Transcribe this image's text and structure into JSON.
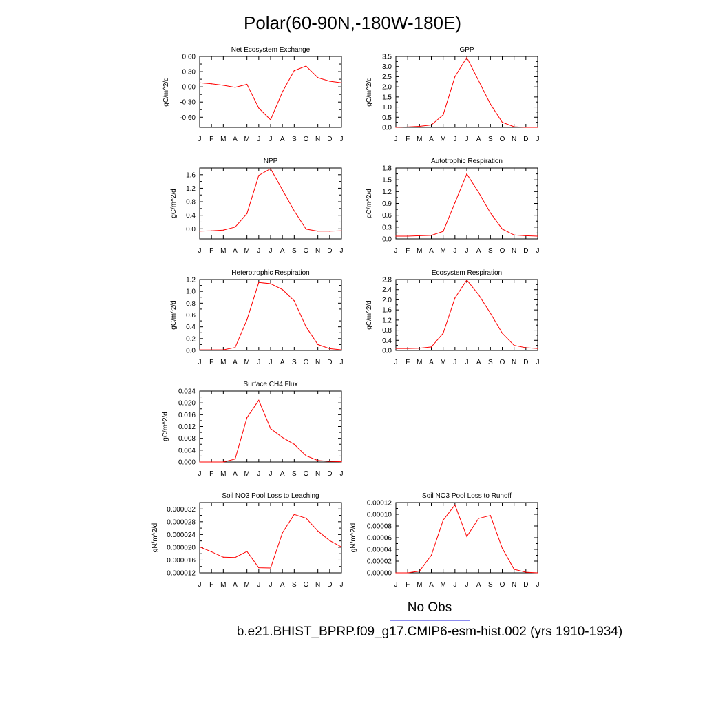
{
  "page": {
    "title": "Polar(60-90N,-180W-180E)"
  },
  "legend": {
    "obs_label": "No Obs",
    "obs_color": "#8c8cf0",
    "case_label": "b.e21.BHIST_BPRP.f09_g17.CMIP6-esm-hist.002 (yrs 1910-1934)",
    "case_color": "#f08c8c"
  },
  "chart_data": [
    {
      "type": "line",
      "title": "Net Ecosystem Exchange",
      "ylabel": "gC/m^2/d",
      "categories": [
        "J",
        "F",
        "M",
        "A",
        "M",
        "J",
        "J",
        "A",
        "S",
        "O",
        "N",
        "D",
        "J"
      ],
      "ylim": [
        -0.8,
        0.6
      ],
      "yticks": [
        -0.6,
        -0.3,
        0.0,
        0.3,
        0.6
      ],
      "ytick_labels": [
        "-0.60",
        "-0.30",
        "0.00",
        "0.30",
        "0.60"
      ],
      "series": [
        {
          "values": [
            0.08,
            0.06,
            0.03,
            -0.01,
            0.05,
            -0.42,
            -0.65,
            -0.1,
            0.32,
            0.41,
            0.18,
            0.11,
            0.08
          ],
          "color": "#ff0000"
        }
      ]
    },
    {
      "type": "line",
      "title": "GPP",
      "ylabel": "gC/m^2/d",
      "categories": [
        "J",
        "F",
        "M",
        "A",
        "M",
        "J",
        "J",
        "A",
        "S",
        "O",
        "N",
        "D",
        "J"
      ],
      "ylim": [
        0.0,
        3.5
      ],
      "yticks": [
        0.0,
        0.5,
        1.0,
        1.5,
        2.0,
        2.5,
        3.0,
        3.5
      ],
      "ytick_labels": [
        "0.0",
        "0.5",
        "1.0",
        "1.5",
        "2.0",
        "2.5",
        "3.0",
        "3.5"
      ],
      "series": [
        {
          "values": [
            0.0,
            0.02,
            0.05,
            0.12,
            0.62,
            2.5,
            3.45,
            2.3,
            1.15,
            0.25,
            0.03,
            0.0,
            0.0
          ],
          "color": "#ff0000"
        }
      ]
    },
    {
      "type": "line",
      "title": "NPP",
      "ylabel": "gC/m^2/d",
      "categories": [
        "J",
        "F",
        "M",
        "A",
        "M",
        "J",
        "J",
        "A",
        "S",
        "O",
        "N",
        "D",
        "J"
      ],
      "ylim": [
        -0.3,
        1.8
      ],
      "yticks": [
        0.0,
        0.4,
        0.8,
        1.2,
        1.6
      ],
      "ytick_labels": [
        "0.0",
        "0.4",
        "0.8",
        "1.2",
        "1.6"
      ],
      "series": [
        {
          "values": [
            -0.07,
            -0.06,
            -0.04,
            0.05,
            0.45,
            1.58,
            1.78,
            1.15,
            0.53,
            -0.01,
            -0.07,
            -0.07,
            -0.06
          ],
          "color": "#ff0000"
        }
      ]
    },
    {
      "type": "line",
      "title": "Autotrophic Respiration",
      "ylabel": "gC/m^2/d",
      "categories": [
        "J",
        "F",
        "M",
        "A",
        "M",
        "J",
        "J",
        "A",
        "S",
        "O",
        "N",
        "D",
        "J"
      ],
      "ylim": [
        0.0,
        1.8
      ],
      "yticks": [
        0.0,
        0.3,
        0.6,
        0.9,
        1.2,
        1.5,
        1.8
      ],
      "ytick_labels": [
        "0.0",
        "0.3",
        "0.6",
        "0.9",
        "1.2",
        "1.5",
        "1.8"
      ],
      "series": [
        {
          "values": [
            0.07,
            0.07,
            0.08,
            0.09,
            0.19,
            0.92,
            1.65,
            1.18,
            0.66,
            0.25,
            0.1,
            0.08,
            0.07
          ],
          "color": "#ff0000"
        }
      ]
    },
    {
      "type": "line",
      "title": "Heterotrophic Respiration",
      "ylabel": "gC/m^2/d",
      "categories": [
        "J",
        "F",
        "M",
        "A",
        "M",
        "J",
        "J",
        "A",
        "S",
        "O",
        "N",
        "D",
        "J"
      ],
      "ylim": [
        0.0,
        1.2
      ],
      "yticks": [
        0.0,
        0.2,
        0.4,
        0.6,
        0.8,
        1.0,
        1.2
      ],
      "ytick_labels": [
        "0.0",
        "0.2",
        "0.4",
        "0.6",
        "0.8",
        "1.0",
        "1.2"
      ],
      "series": [
        {
          "values": [
            0.01,
            0.01,
            0.01,
            0.05,
            0.52,
            1.15,
            1.13,
            1.03,
            0.84,
            0.4,
            0.1,
            0.03,
            0.01
          ],
          "color": "#ff0000"
        }
      ]
    },
    {
      "type": "line",
      "title": "Ecosystem Respiration",
      "ylabel": "gC/m^2/d",
      "categories": [
        "J",
        "F",
        "M",
        "A",
        "M",
        "J",
        "J",
        "A",
        "S",
        "O",
        "N",
        "D",
        "J"
      ],
      "ylim": [
        0.0,
        2.8
      ],
      "yticks": [
        0.0,
        0.4,
        0.8,
        1.2,
        1.6,
        2.0,
        2.4,
        2.8
      ],
      "ytick_labels": [
        "0.0",
        "0.4",
        "0.8",
        "1.2",
        "1.6",
        "2.0",
        "2.4",
        "2.8"
      ],
      "series": [
        {
          "values": [
            0.08,
            0.08,
            0.09,
            0.14,
            0.68,
            2.07,
            2.78,
            2.2,
            1.47,
            0.68,
            0.2,
            0.11,
            0.08
          ],
          "color": "#ff0000"
        }
      ]
    },
    {
      "type": "line",
      "title": "Surface CH4 Flux",
      "ylabel": "gC/m^2/d",
      "categories": [
        "J",
        "F",
        "M",
        "A",
        "M",
        "J",
        "J",
        "A",
        "S",
        "O",
        "N",
        "D",
        "J"
      ],
      "ylim": [
        0.0,
        0.024
      ],
      "yticks": [
        0.0,
        0.004,
        0.008,
        0.012,
        0.016,
        0.02,
        0.024
      ],
      "ytick_labels": [
        "0.000",
        "0.004",
        "0.008",
        "0.012",
        "0.016",
        "0.020",
        "0.024"
      ],
      "series": [
        {
          "values": [
            0.0,
            0.0,
            0.0,
            0.001,
            0.015,
            0.0209,
            0.0113,
            0.0083,
            0.006,
            0.0021,
            0.0005,
            0.0002,
            0.0001
          ],
          "color": "#ff0000"
        }
      ]
    },
    {
      "type": "line",
      "title": "Soil NO3 Pool Loss to Leaching",
      "ylabel": "gN/m^2/d",
      "categories": [
        "J",
        "F",
        "M",
        "A",
        "M",
        "J",
        "J",
        "A",
        "S",
        "O",
        "N",
        "D",
        "J"
      ],
      "ylim": [
        1.2e-05,
        3.4e-05
      ],
      "yticks": [
        1.2e-05,
        1.6e-05,
        2e-05,
        2.4e-05,
        2.8e-05,
        3.2e-05
      ],
      "ytick_labels": [
        "0.000012",
        "0.000016",
        "0.000020",
        "0.000024",
        "0.000028",
        "0.000032"
      ],
      "series": [
        {
          "values": [
            2.01e-05,
            1.86e-05,
            1.69e-05,
            1.68e-05,
            1.87e-05,
            1.36e-05,
            1.35e-05,
            2.45e-05,
            3.03e-05,
            2.91e-05,
            2.51e-05,
            2.21e-05,
            2.01e-05
          ],
          "color": "#ff0000"
        }
      ]
    },
    {
      "type": "line",
      "title": "Soil NO3 Pool Loss to Runoff",
      "ylabel": "gN/m^2/d",
      "categories": [
        "J",
        "F",
        "M",
        "A",
        "M",
        "J",
        "J",
        "A",
        "S",
        "O",
        "N",
        "D",
        "J"
      ],
      "ylim": [
        0.0,
        0.00012
      ],
      "yticks": [
        0.0,
        2e-05,
        4e-05,
        6e-05,
        8e-05,
        0.0001,
        0.00012
      ],
      "ytick_labels": [
        "0.00000",
        "0.00002",
        "0.00004",
        "0.00006",
        "0.00008",
        "0.00010",
        "0.00012"
      ],
      "series": [
        {
          "values": [
            0.0,
            0.0,
            3e-06,
            3e-05,
            9e-05,
            0.000116,
            6.2e-05,
            9.3e-05,
            9.8e-05,
            4.2e-05,
            6e-06,
            1e-06,
            0.0
          ],
          "color": "#ff0000"
        }
      ]
    }
  ]
}
